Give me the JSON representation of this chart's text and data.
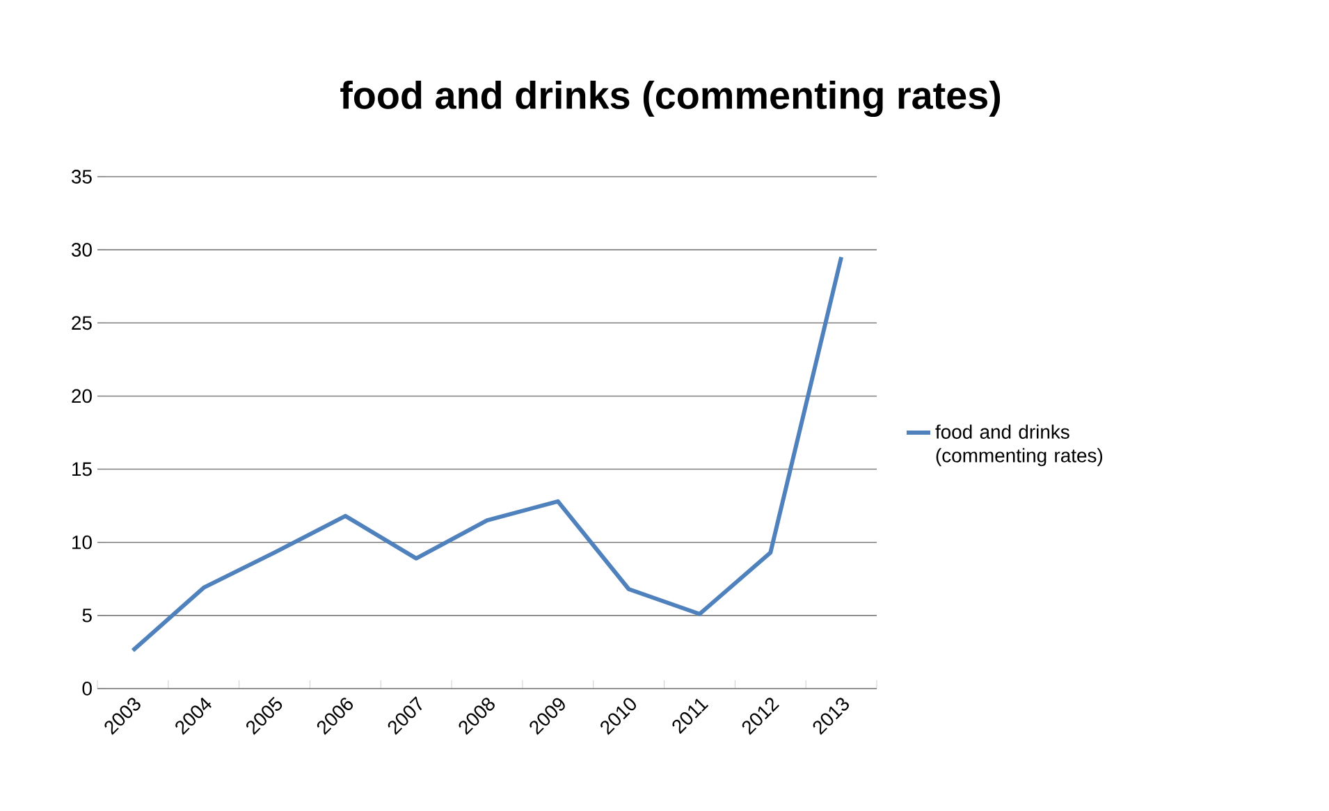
{
  "chart_data": {
    "type": "line",
    "title": "food and drinks (commenting rates)",
    "categories": [
      "2003",
      "2004",
      "2005",
      "2006",
      "2007",
      "2008",
      "2009",
      "2010",
      "2011",
      "2012",
      "2013"
    ],
    "series": [
      {
        "name": "food and drinks (commenting rates)",
        "color": "#4f81bd",
        "values": [
          2.6,
          6.9,
          9.3,
          11.8,
          8.9,
          11.5,
          12.8,
          6.8,
          5.1,
          9.3,
          29.5
        ]
      }
    ],
    "ylim": [
      0,
      35
    ],
    "yticks": [
      0,
      5,
      10,
      15,
      20,
      25,
      30,
      35
    ],
    "grid": "y",
    "legend": "right",
    "marker": "none",
    "line_style": "solid"
  }
}
